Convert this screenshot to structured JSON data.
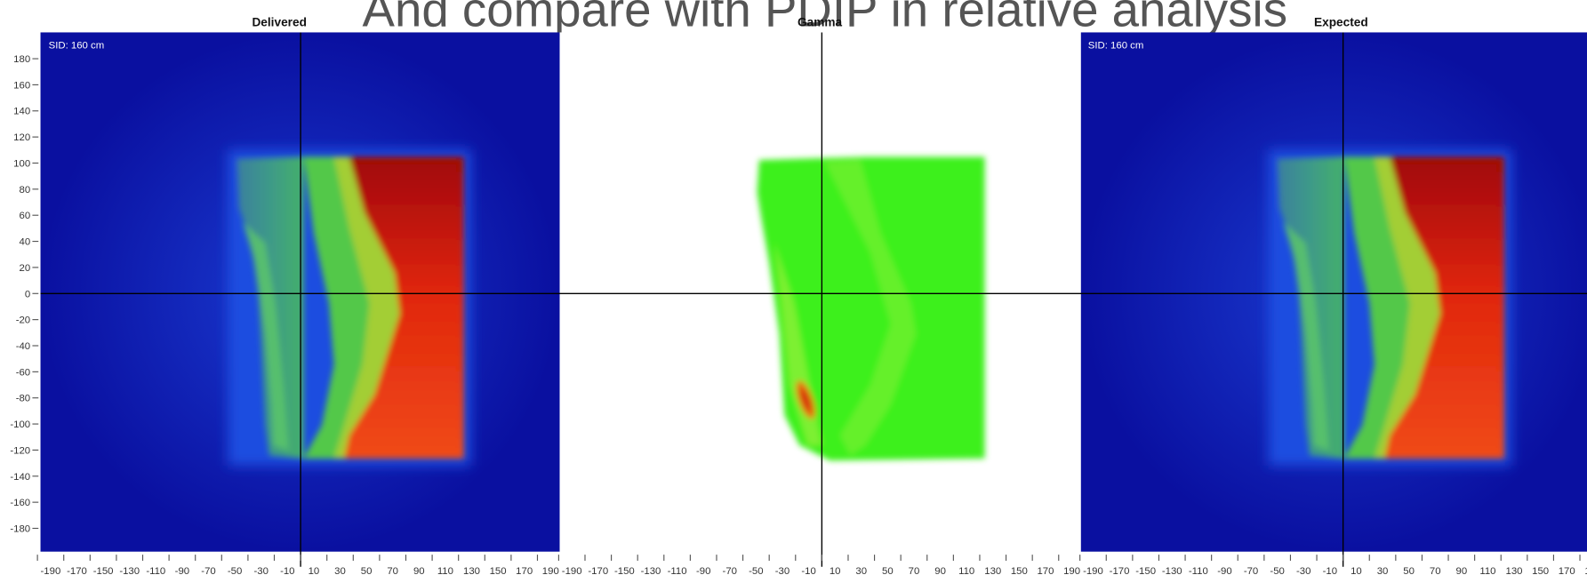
{
  "title": "And compare with PDIP in relative analysis",
  "panels": [
    {
      "title": "Delivered",
      "sid": "SID: 160 cm"
    },
    {
      "title": "Gamma"
    },
    {
      "title": "Expected",
      "sid": "SID: 160 cm"
    }
  ],
  "y_axis": {
    "ticks": [
      "180",
      "160",
      "140",
      "120",
      "100",
      "80",
      "60",
      "40",
      "20",
      "0",
      "-20",
      "-40",
      "-60",
      "-80",
      "-100",
      "-120",
      "-140",
      "-160",
      "-180"
    ]
  },
  "x_axis": {
    "ticks": [
      "-190",
      "-170",
      "-150",
      "-130",
      "-110",
      "-90",
      "-70",
      "-50",
      "-30",
      "-10",
      "10",
      "30",
      "50",
      "70",
      "90",
      "110",
      "130",
      "150",
      "170",
      "190"
    ]
  }
}
